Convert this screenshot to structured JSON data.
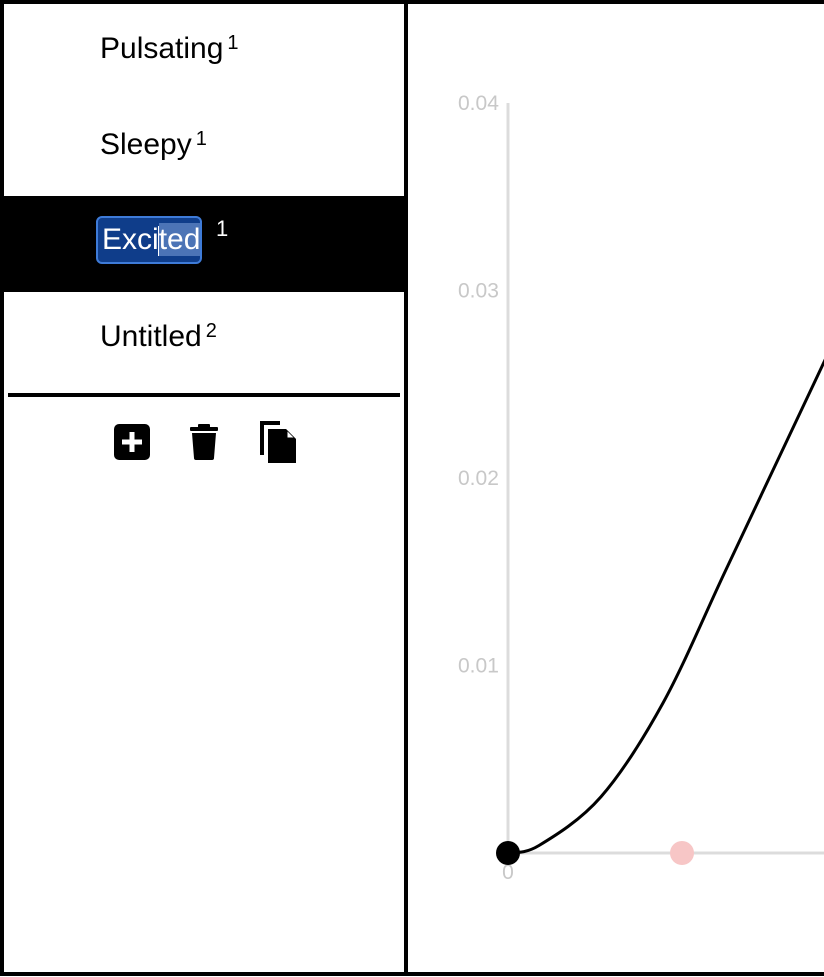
{
  "sidebar": {
    "items": [
      {
        "label": "Pulsating",
        "count": "1",
        "selected": false
      },
      {
        "label": "Sleepy",
        "count": "1",
        "selected": false
      },
      {
        "label": "Excited",
        "count": "1",
        "selected": true
      },
      {
        "label": "Untitled",
        "count": "2",
        "selected": false
      }
    ],
    "editing": {
      "value": "Excited",
      "selection_before": "Exci",
      "selection_after": "ted"
    },
    "toolbar": {
      "add_icon": "plus-square-icon",
      "delete_icon": "trash-icon",
      "duplicate_icon": "copy-icon"
    }
  },
  "chart_data": {
    "type": "line",
    "y_ticks": [
      "0.04",
      "0.03",
      "0.02",
      "0.01",
      "0"
    ],
    "ylim": [
      0,
      0.04
    ],
    "grid": false,
    "series": [
      {
        "points": [
          [
            0,
            0
          ],
          [
            0.5,
            0.0004
          ],
          [
            1.5,
            0.003
          ],
          [
            2.5,
            0.008
          ],
          [
            3.5,
            0.015
          ],
          [
            4.5,
            0.022
          ],
          [
            5.5,
            0.029
          ]
        ]
      }
    ],
    "control_point": {
      "color": "#000000"
    },
    "ghost_point": {
      "color": "#f7c6c6"
    }
  }
}
